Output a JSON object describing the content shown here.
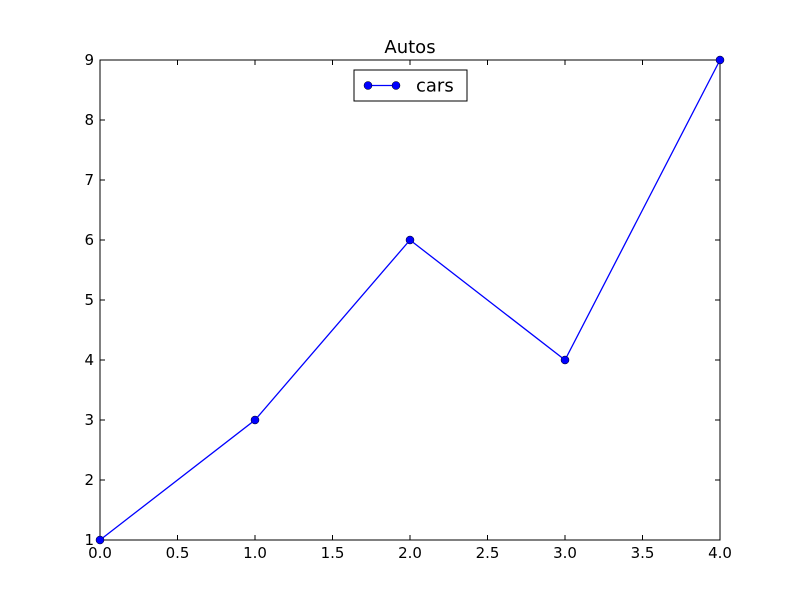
{
  "chart_data": {
    "type": "line",
    "title": "Autos",
    "xlabel": "",
    "ylabel": "",
    "xlim": [
      0,
      4
    ],
    "ylim": [
      1,
      9
    ],
    "x_ticks": [
      0.0,
      0.5,
      1.0,
      1.5,
      2.0,
      2.5,
      3.0,
      3.5,
      4.0
    ],
    "x_tick_labels": [
      "0.0",
      "0.5",
      "1.0",
      "1.5",
      "2.0",
      "2.5",
      "3.0",
      "3.5",
      "4.0"
    ],
    "y_ticks": [
      1,
      2,
      3,
      4,
      5,
      6,
      7,
      8,
      9
    ],
    "y_tick_labels": [
      "1",
      "2",
      "3",
      "4",
      "5",
      "6",
      "7",
      "8",
      "9"
    ],
    "grid": false,
    "legend": {
      "placement": "upper-center",
      "entries": [
        "cars"
      ]
    },
    "series": [
      {
        "name": "cars",
        "color": "#0000ff",
        "marker": "circle",
        "x": [
          0,
          1,
          2,
          3,
          4
        ],
        "y": [
          1,
          3,
          6,
          4,
          9
        ]
      }
    ]
  }
}
